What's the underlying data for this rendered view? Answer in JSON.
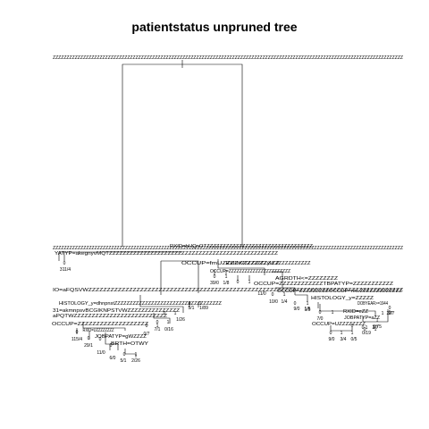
{
  "title": "patientstatus unpruned tree",
  "root_split": "ZZZZZZZZZZZZZZZZZZZZZZZZZZZZZZZZZZZZZZZZZZZZZZZZZZZZZZZZZZZZZZZZZZZZZZZZZZZZZZZZZZZZZZZZZZZZZZZZZZZZZZZZZZZZZZZZZZZZZZZZZZZZZZZ",
  "split_labels": [
    "ZZZZZZZZZZZZZZZZZZZZZZZZZZZZZZZZZZZZZZZZZZZZZZZZZZZZZZZZZZZZZZZZZZZZZZZZZZZZZZZZZZZZZZZZZZZZZZZZZZZZZZZZZZZZZZZZZZZZZZZZZZZZZZ",
    "RXID=bHQnOTZZZZZZZZZZZZZZZZZZZZZZZZZZZZZZZZZ",
    "YATYP=akegnyvMQTZZZZZZZZZZZZZZZZZZZZZZZZZZZZZZZZZZZZZZZZZZZZZZZZZ",
    "OCCUP=fmUZZZZZZZZZZZZZZ",
    "RXID=ZZZZZZZZyvLZZZZZZZZZZZ",
    "OCCUP=ZZZZZZZZZZZZZZZZZZZZZZZ",
    "AGRDTH<=ZZZZZZZZ",
    "OCCUP=ZZZZZZZZZZZZTBPATYP=ZZZZZZZZZZZ",
    "IO=aFQSVWZZZZZZZZZZZZZZZZZZZZZZZZZZZZZZZZZZZZZZZZZZZZZZZZZZZZZZZZZZZZZZZZZZZZZZZZZZZZZZZZZZZZZ",
    "OCCUP=ZZZZZZZZZOCCUP=nkLZZZZZZZZZZZZZ",
    "HISTOLOGY_y=dhnpnstZZZZZZZZZZZZZZZZZZZZZZZZZZZZZZZZZZZ",
    "31=akmnpsvBCGIKNPSTVWZZZZZZZZZZZZZZZ",
    "aPQTWZZZZZZZZZZZZZZZZZZZZZZZZZZ",
    "OCCUP=ZZZZZZZZZZZZZZZZZZZ",
    "RXID=UZZZZZZZZ",
    "JOBPATYP=gWZZZZ",
    "BRTH=OTWY",
    "HISTOLOGY_y=ZZZZZ",
    "DOBYEAR>=1944",
    "RXID=eZZ",
    "JOBPATYP=aZZ",
    "OCCUP=UZZZZZZZZ"
  ],
  "leaf_labels": [
    "0",
    "311/4",
    "0",
    "1",
    "39/0",
    "1/8",
    "0",
    "1",
    "11/0",
    "0",
    "1",
    "10/0",
    "1/4",
    "0",
    "1",
    "9/0",
    "1/5",
    "0",
    "1",
    "1/26",
    "0",
    "1",
    "7/1",
    "0/16",
    "0",
    "1",
    "5/1",
    "1/89",
    "0",
    "1",
    "0",
    "1",
    "0",
    "0",
    "115/4",
    "29/1",
    "0",
    "11/0",
    "6/0",
    "0",
    "0",
    "1",
    "5/1",
    "2/26",
    "0",
    "1",
    "0/7",
    "0",
    "1",
    "7/0",
    "1",
    "2/7",
    "1",
    "2/7",
    "0",
    "1",
    "1",
    "2/75",
    "0",
    "1",
    "0",
    "9/0",
    "3/4",
    "0/5",
    "0/19",
    "1",
    "2/7",
    "1/5"
  ]
}
